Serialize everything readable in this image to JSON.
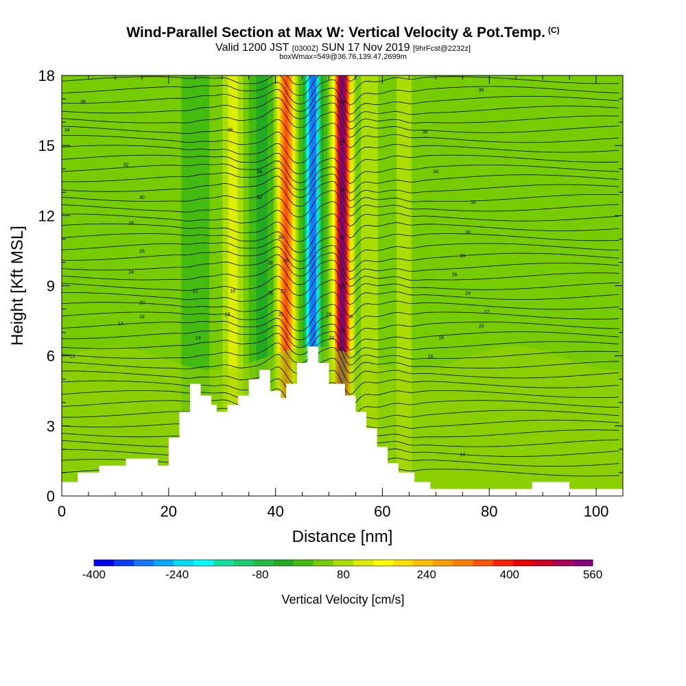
{
  "header": {
    "title": "Wind-Parallel Section at Max W: Vertical Velocity & Pot.Temp.",
    "copyright": "(C)",
    "valid_prefix": "Valid 1200 JST",
    "valid_utc": "(0300Z)",
    "valid_date": "SUN 17 Nov 2019",
    "forecast_info": "[9hrFcst@2232z]",
    "box_info": "boxWmax=549@36.76,139.47,2699m"
  },
  "chart_data": {
    "type": "heatmap",
    "xlabel": "Distance [nm]",
    "ylabel": "Height [Kft MSL]",
    "xlim": [
      0,
      105
    ],
    "ylim": [
      0,
      18
    ],
    "x_ticks": [
      0,
      20,
      40,
      60,
      80,
      100
    ],
    "y_ticks": [
      0,
      3,
      6,
      9,
      12,
      15,
      18
    ],
    "colorbar": {
      "label": "Vertical Velocity [cm/s]",
      "min": -400,
      "max": 560,
      "step": 40,
      "tick_values": [
        -400,
        -240,
        -80,
        80,
        240,
        400,
        560
      ],
      "colors": [
        "#0000f0",
        "#0a3cf5",
        "#1478f8",
        "#00aaff",
        "#00ddff",
        "#00ffff",
        "#11e0a0",
        "#1ccc70",
        "#22bb44",
        "#22aa22",
        "#44bb11",
        "#77cc00",
        "#aadd00",
        "#ddee00",
        "#ffff00",
        "#ffe000",
        "#ffc000",
        "#ffa000",
        "#ff8000",
        "#ff5500",
        "#ff2200",
        "#e80000",
        "#cc0022",
        "#aa0055",
        "#880077"
      ]
    },
    "terrain_profile": {
      "x": [
        0,
        3,
        3,
        7,
        7,
        12,
        12,
        18,
        18,
        20,
        20,
        22,
        22,
        24,
        24,
        26,
        26,
        28,
        28,
        29,
        29,
        31,
        31,
        33,
        33,
        35,
        35,
        37,
        37,
        39,
        39,
        41,
        41,
        42,
        42,
        44,
        44,
        46,
        46,
        48,
        48,
        50,
        50,
        53,
        53,
        55,
        55,
        57,
        57,
        59,
        59,
        61,
        61,
        63,
        63,
        66,
        66,
        69,
        69,
        72,
        72,
        75,
        75,
        78,
        78,
        88,
        88,
        95,
        95,
        105
      ],
      "height_kft": [
        0.6,
        0.6,
        1.0,
        1.0,
        1.3,
        1.3,
        1.6,
        1.6,
        1.3,
        1.3,
        2.5,
        2.5,
        3.6,
        3.6,
        4.8,
        4.8,
        4.3,
        4.3,
        3.9,
        3.9,
        3.6,
        3.6,
        3.9,
        3.9,
        4.3,
        4.3,
        5.0,
        5.0,
        5.4,
        5.4,
        4.5,
        4.5,
        4.2,
        4.2,
        4.8,
        4.8,
        5.7,
        5.7,
        6.4,
        6.4,
        5.7,
        5.7,
        4.8,
        4.8,
        4.3,
        4.3,
        3.6,
        3.6,
        2.9,
        2.9,
        2.1,
        2.1,
        1.4,
        1.4,
        1.0,
        1.0,
        0.6,
        0.6,
        0.3,
        0.3,
        0.3,
        0.3,
        0.3,
        0.3,
        0.3,
        0.3,
        0.6,
        0.6,
        0.3,
        0.3
      ]
    },
    "vertical_velocity_features": [
      {
        "name": "updraft",
        "x_center": 42.0,
        "w_cm_s": 360
      },
      {
        "name": "downdraft",
        "x_center": 47.0,
        "w_cm_s": -360
      },
      {
        "name": "updraft",
        "x_center": 52.5,
        "w_cm_s": 549
      },
      {
        "name": "updraft",
        "x_center": 32.0,
        "w_cm_s": 90
      },
      {
        "name": "downdraft",
        "x_center": 37.5,
        "w_cm_s": -60
      },
      {
        "name": "updraft",
        "x_center": 57.5,
        "w_cm_s": 70
      },
      {
        "name": "updraft",
        "x_center": 64.0,
        "w_cm_s": 60
      },
      {
        "name": "downdraft",
        "x_center": 25.0,
        "w_cm_s": -40
      }
    ],
    "contour_labels": [
      {
        "text": "36",
        "x": 4,
        "y": 16.9
      },
      {
        "text": "34",
        "x": 1,
        "y": 15.7
      },
      {
        "text": "32",
        "x": 12,
        "y": 14.2
      },
      {
        "text": "30",
        "x": 15,
        "y": 12.8
      },
      {
        "text": "28",
        "x": 13,
        "y": 11.7
      },
      {
        "text": "26",
        "x": 15,
        "y": 10.5
      },
      {
        "text": "24",
        "x": 13,
        "y": 9.6
      },
      {
        "text": "20",
        "x": 15,
        "y": 8.3
      },
      {
        "text": "18",
        "x": 15,
        "y": 7.7
      },
      {
        "text": "14",
        "x": 11,
        "y": 7.4
      },
      {
        "text": "16",
        "x": 2,
        "y": 6.0
      },
      {
        "text": "16",
        "x": 32,
        "y": 8.8
      },
      {
        "text": "18",
        "x": 31,
        "y": 7.8
      },
      {
        "text": "22",
        "x": 25,
        "y": 8.8
      },
      {
        "text": "14",
        "x": 25.5,
        "y": 6.8
      },
      {
        "text": "36",
        "x": 31.5,
        "y": 15.7
      },
      {
        "text": "34",
        "x": 37,
        "y": 13.9
      },
      {
        "text": "32",
        "x": 37,
        "y": 12.8
      },
      {
        "text": "30",
        "x": 41,
        "y": 11.1
      },
      {
        "text": "28",
        "x": 39,
        "y": 10.0
      },
      {
        "text": "26",
        "x": 42,
        "y": 10.1
      },
      {
        "text": "24",
        "x": 39,
        "y": 8.7
      },
      {
        "text": "22",
        "x": 41.5,
        "y": 8.8
      },
      {
        "text": "20",
        "x": 41,
        "y": 7.8
      },
      {
        "text": "36",
        "x": 52.5,
        "y": 16.9
      },
      {
        "text": "34",
        "x": 52.5,
        "y": 15.2
      },
      {
        "text": "32",
        "x": 52.5,
        "y": 13.1
      },
      {
        "text": "30",
        "x": 52.5,
        "y": 11.1
      },
      {
        "text": "28",
        "x": 52.5,
        "y": 9.0
      },
      {
        "text": "26",
        "x": 50,
        "y": 7.8
      },
      {
        "text": "24",
        "x": 50.5,
        "y": 6.8
      },
      {
        "text": "20",
        "x": 52.5,
        "y": 7.1
      },
      {
        "text": "16",
        "x": 52,
        "y": 6.3
      },
      {
        "text": "18",
        "x": 54,
        "y": 7.7
      },
      {
        "text": "36",
        "x": 78.5,
        "y": 17.4
      },
      {
        "text": "36",
        "x": 68,
        "y": 15.6
      },
      {
        "text": "34",
        "x": 70,
        "y": 13.9
      },
      {
        "text": "32",
        "x": 77,
        "y": 12.6
      },
      {
        "text": "30",
        "x": 76,
        "y": 11.3
      },
      {
        "text": "28",
        "x": 75,
        "y": 10.3
      },
      {
        "text": "26",
        "x": 73.5,
        "y": 9.5
      },
      {
        "text": "24",
        "x": 76,
        "y": 8.7
      },
      {
        "text": "22",
        "x": 79.5,
        "y": 7.9
      },
      {
        "text": "20",
        "x": 78.5,
        "y": 7.3
      },
      {
        "text": "18",
        "x": 71,
        "y": 6.8
      },
      {
        "text": "16",
        "x": 69,
        "y": 6.0
      },
      {
        "text": "14",
        "x": 75,
        "y": 1.8
      }
    ],
    "grid": false,
    "legend": "colorbar-bottom"
  }
}
